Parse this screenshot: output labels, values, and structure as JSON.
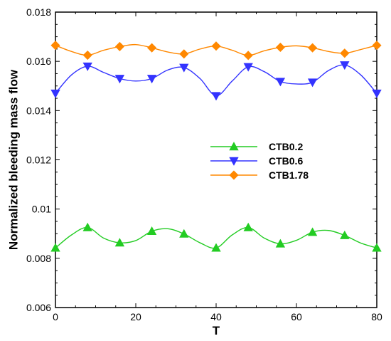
{
  "chart_data": {
    "type": "line",
    "title": "",
    "xlabel": "T",
    "ylabel": "Normalized bleeding mass flow",
    "xlim": [
      0,
      80
    ],
    "ylim": [
      0.006,
      0.018
    ],
    "xticks": [
      "0",
      "20",
      "40",
      "60",
      "80"
    ],
    "yticks": [
      "0.006",
      "0.008",
      "0.01",
      "0.012",
      "0.014",
      "0.016",
      "0.018"
    ],
    "grid": false,
    "legend_position": "center-right",
    "x": [
      0,
      4,
      8,
      12,
      16,
      20,
      24,
      28,
      32,
      36,
      40,
      44,
      48,
      52,
      56,
      60,
      64,
      68,
      72,
      76,
      80
    ],
    "marker_x": [
      0,
      8,
      16,
      24,
      32,
      40,
      48,
      56,
      64,
      72,
      80
    ],
    "series": [
      {
        "name": "CTB0.2",
        "color": "#22cc22",
        "marker": "triangle-up",
        "values": [
          0.00842,
          0.00895,
          0.00925,
          0.00882,
          0.00863,
          0.00872,
          0.0091,
          0.0092,
          0.00899,
          0.00863,
          0.00842,
          0.00895,
          0.00925,
          0.00882,
          0.00859,
          0.00873,
          0.00906,
          0.00913,
          0.00893,
          0.00862,
          0.00842
        ],
        "marker_values": [
          0.00842,
          0.00925,
          0.00863,
          0.0091,
          0.00899,
          0.00842,
          0.00925,
          0.00859,
          0.00906,
          0.00893,
          0.00842
        ]
      },
      {
        "name": "CTB0.6",
        "color": "#3333ff",
        "marker": "triangle-down",
        "values": [
          0.0147,
          0.01545,
          0.0158,
          0.01555,
          0.0153,
          0.0152,
          0.0153,
          0.01565,
          0.01575,
          0.0153,
          0.0146,
          0.0152,
          0.01578,
          0.01558,
          0.01518,
          0.01508,
          0.01515,
          0.01563,
          0.01585,
          0.01545,
          0.0147
        ],
        "marker_values": [
          0.0147,
          0.0158,
          0.0153,
          0.0153,
          0.01575,
          0.0146,
          0.01578,
          0.01518,
          0.01515,
          0.01585,
          0.0147
        ]
      },
      {
        "name": "CTB1.78",
        "color": "#ff8800",
        "marker": "diamond",
        "values": [
          0.01665,
          0.0164,
          0.01625,
          0.01645,
          0.0166,
          0.01668,
          0.01655,
          0.01638,
          0.0163,
          0.0165,
          0.01662,
          0.01645,
          0.01624,
          0.01643,
          0.01657,
          0.01663,
          0.01655,
          0.0164,
          0.01633,
          0.01648,
          0.01665
        ],
        "marker_values": [
          0.01665,
          0.01625,
          0.0166,
          0.01655,
          0.0163,
          0.01662,
          0.01624,
          0.01657,
          0.01655,
          0.01633,
          0.01665
        ]
      }
    ]
  }
}
